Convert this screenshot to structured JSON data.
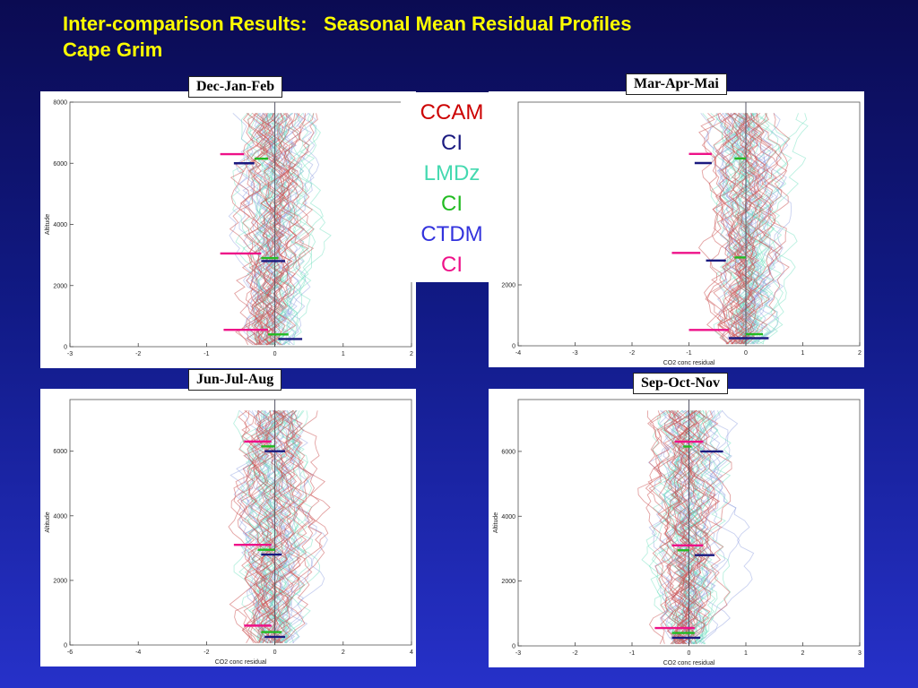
{
  "title": {
    "line1": "Inter-comparison Results:   Seasonal Mean Residual Profiles",
    "line2": "Cape Grim"
  },
  "legend": [
    {
      "text": "CCAM",
      "color": "#cc0000"
    },
    {
      "text": "CI",
      "color": "#1a1a80"
    },
    {
      "text": "LMDz",
      "color": "#44d9b0"
    },
    {
      "text": "CI",
      "color": "#22bb22"
    },
    {
      "text": "CTDM",
      "color": "#3333dd"
    },
    {
      "text": "CI",
      "color": "#ee1188"
    }
  ],
  "series_colors": {
    "CCAM": "#cc5555",
    "LMDz": "#66ddbb",
    "CTDM": "#8899dd"
  },
  "ci_colors": {
    "CCAM": "#ee1188",
    "LMDz": "#22bb22",
    "CTDM": "#1a1a80"
  },
  "chart_data": [
    {
      "type": "line",
      "panel_label": "Dec-Jan-Feb",
      "ylabel": "Altitude",
      "xlabel": "",
      "xlim": [
        -3,
        2
      ],
      "ylim": [
        0,
        8000
      ],
      "x_ticks": [
        "-3",
        "-2",
        "-1",
        "0",
        "1",
        "2"
      ],
      "y_ticks": [
        "0",
        "2000",
        "4000",
        "6000",
        "8000"
      ],
      "ci": [
        {
          "model": "CCAM",
          "y": 6300,
          "x0": -0.8,
          "x1": -0.45
        },
        {
          "model": "LMDz",
          "y": 6150,
          "x0": -0.3,
          "x1": -0.1
        },
        {
          "model": "CTDM",
          "y": 6000,
          "x0": -0.6,
          "x1": -0.3
        },
        {
          "model": "CCAM",
          "y": 3050,
          "x0": -0.8,
          "x1": -0.2
        },
        {
          "model": "LMDz",
          "y": 2900,
          "x0": -0.2,
          "x1": 0.05
        },
        {
          "model": "CTDM",
          "y": 2800,
          "x0": -0.2,
          "x1": 0.15
        },
        {
          "model": "CCAM",
          "y": 550,
          "x0": -0.75,
          "x1": -0.1
        },
        {
          "model": "LMDz",
          "y": 400,
          "x0": -0.1,
          "x1": 0.2
        },
        {
          "model": "CTDM",
          "y": 250,
          "x0": 0.05,
          "x1": 0.4
        }
      ]
    },
    {
      "type": "line",
      "panel_label": "Mar-Apr-Mai",
      "ylabel": "",
      "xlabel": "CO2 conc residual",
      "xlim": [
        -4,
        2
      ],
      "ylim": [
        0,
        8000
      ],
      "x_ticks": [
        "-4",
        "-3",
        "-2",
        "-1",
        "0",
        "1",
        "2"
      ],
      "y_ticks": [
        "0",
        "2000"
      ],
      "ci": [
        {
          "model": "CCAM",
          "y": 6300,
          "x0": -1.0,
          "x1": -0.6
        },
        {
          "model": "LMDz",
          "y": 6150,
          "x0": -0.2,
          "x1": 0.0
        },
        {
          "model": "CTDM",
          "y": 6000,
          "x0": -0.9,
          "x1": -0.6
        },
        {
          "model": "CCAM",
          "y": 3050,
          "x0": -1.3,
          "x1": -0.8
        },
        {
          "model": "LMDz",
          "y": 2900,
          "x0": -0.2,
          "x1": 0.0
        },
        {
          "model": "CTDM",
          "y": 2800,
          "x0": -0.7,
          "x1": -0.35
        },
        {
          "model": "CCAM",
          "y": 520,
          "x0": -1.0,
          "x1": -0.3
        },
        {
          "model": "LMDz",
          "y": 380,
          "x0": 0.0,
          "x1": 0.3
        },
        {
          "model": "CTDM",
          "y": 250,
          "x0": -0.3,
          "x1": 0.4
        }
      ]
    },
    {
      "type": "line",
      "panel_label": "Jun-Jul-Aug",
      "ylabel": "Altitude",
      "xlabel": "CO2 conc residual",
      "xlim": [
        -6,
        4
      ],
      "ylim": [
        0,
        7600
      ],
      "x_ticks": [
        "-6",
        "-4",
        "-2",
        "0",
        "2",
        "4"
      ],
      "y_ticks": [
        "0",
        "2000",
        "4000",
        "6000"
      ],
      "ci": [
        {
          "model": "CCAM",
          "y": 6300,
          "x0": -0.9,
          "x1": -0.1
        },
        {
          "model": "LMDz",
          "y": 6150,
          "x0": -0.4,
          "x1": 0.0
        },
        {
          "model": "CTDM",
          "y": 6000,
          "x0": -0.3,
          "x1": 0.3
        },
        {
          "model": "CCAM",
          "y": 3100,
          "x0": -1.2,
          "x1": -0.1
        },
        {
          "model": "LMDz",
          "y": 2950,
          "x0": -0.5,
          "x1": 0.0
        },
        {
          "model": "CTDM",
          "y": 2800,
          "x0": -0.4,
          "x1": 0.2
        },
        {
          "model": "CCAM",
          "y": 600,
          "x0": -0.9,
          "x1": -0.1
        },
        {
          "model": "LMDz",
          "y": 400,
          "x0": -0.4,
          "x1": 0.2
        },
        {
          "model": "CTDM",
          "y": 250,
          "x0": -0.3,
          "x1": 0.3
        }
      ]
    },
    {
      "type": "line",
      "panel_label": "Sep-Oct-Nov",
      "ylabel": "Altitude",
      "xlabel": "CO2 conc residual",
      "xlim": [
        -3,
        3
      ],
      "ylim": [
        0,
        7600
      ],
      "x_ticks": [
        "-3",
        "-2",
        "-1",
        "0",
        "1",
        "2",
        "3"
      ],
      "y_ticks": [
        "0",
        "2000",
        "4000",
        "6000"
      ],
      "ci": [
        {
          "model": "CCAM",
          "y": 6300,
          "x0": -0.25,
          "x1": 0.25
        },
        {
          "model": "LMDz",
          "y": 6150,
          "x0": -0.1,
          "x1": 0.05
        },
        {
          "model": "CTDM",
          "y": 6000,
          "x0": 0.2,
          "x1": 0.6
        },
        {
          "model": "CCAM",
          "y": 3100,
          "x0": -0.3,
          "x1": 0.25
        },
        {
          "model": "LMDz",
          "y": 2950,
          "x0": -0.2,
          "x1": 0.0
        },
        {
          "model": "CTDM",
          "y": 2800,
          "x0": 0.1,
          "x1": 0.45
        },
        {
          "model": "CCAM",
          "y": 550,
          "x0": -0.6,
          "x1": 0.1
        },
        {
          "model": "LMDz",
          "y": 400,
          "x0": -0.3,
          "x1": 0.1
        },
        {
          "model": "CTDM",
          "y": 250,
          "x0": -0.3,
          "x1": 0.2
        }
      ]
    }
  ]
}
